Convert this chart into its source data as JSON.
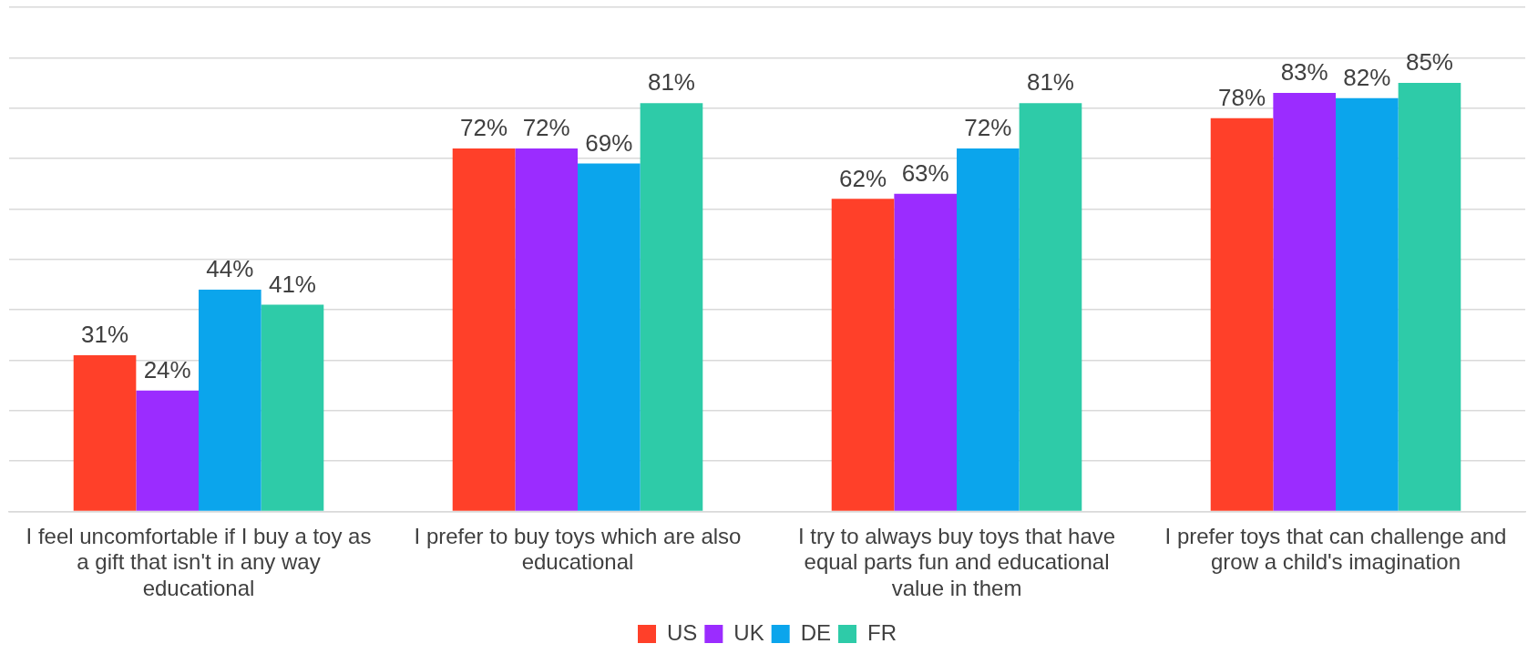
{
  "chart_data": {
    "type": "bar",
    "categories": [
      "I feel uncomfortable if I buy a toy as a gift that isn't in any way educational",
      "I prefer to buy toys which are also educational",
      "I try to always buy toys that have equal parts fun and educational value in them",
      "I prefer toys that can challenge and grow a child's imagination"
    ],
    "series": [
      {
        "name": "US",
        "color": "#ff4029",
        "values": [
          31,
          72,
          62,
          78
        ],
        "value_labels": [
          "31%",
          "72%",
          "62%",
          "78%"
        ]
      },
      {
        "name": "UK",
        "color": "#9b2cff",
        "values": [
          24,
          72,
          63,
          83
        ],
        "value_labels": [
          "24%",
          "72%",
          "63%",
          "83%"
        ]
      },
      {
        "name": "DE",
        "color": "#0ba5ec",
        "values": [
          44,
          69,
          72,
          82
        ],
        "value_labels": [
          "44%",
          "69%",
          "72%",
          "82%"
        ]
      },
      {
        "name": "FR",
        "color": "#2ecba8",
        "values": [
          41,
          81,
          81,
          85
        ],
        "value_labels": [
          "41%",
          "81%",
          "81%",
          "85%"
        ]
      }
    ],
    "ylim": [
      0,
      100
    ],
    "yticks": [
      {
        "value": 0,
        "label": null
      },
      {
        "value": 10,
        "label": null
      },
      {
        "value": 20,
        "label": null
      },
      {
        "value": 30,
        "label": null
      },
      {
        "value": 40,
        "label": null
      },
      {
        "value": 50,
        "label": null
      },
      {
        "value": 60,
        "label": null
      },
      {
        "value": 70,
        "label": null
      },
      {
        "value": 80,
        "label": null
      },
      {
        "value": 90,
        "label": null
      },
      {
        "value": 100,
        "label": null
      }
    ],
    "grid": "y",
    "legend": "bottom",
    "tick_labels": "x"
  }
}
